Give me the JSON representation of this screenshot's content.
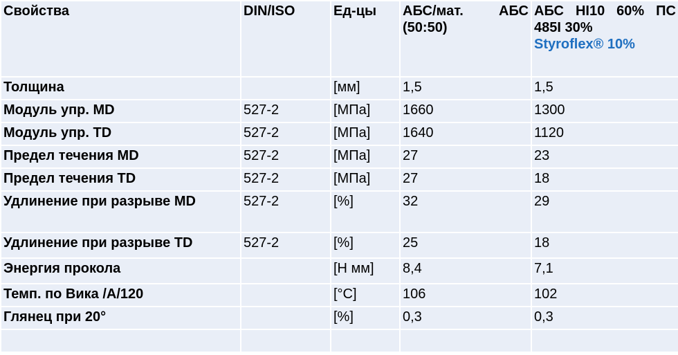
{
  "table": {
    "header": [
      "Свойства",
      "DIN/ISO",
      "Ед-цы",
      "АБС/мат. АБС (50:50)",
      {
        "main": "АБС HI10 60% ПС 485I 30%",
        "accent": "Styroflex® 10%"
      }
    ],
    "rows": [
      [
        "Толщина",
        null,
        "[мм]",
        "1,5",
        "1,5"
      ],
      [
        "Модуль упр. MD",
        "527-2",
        "[МПа]",
        "1660",
        "1300"
      ],
      [
        "Модуль упр. TD",
        "527-2",
        "[МПа]",
        "1640",
        "1120"
      ],
      [
        "Предел течения MD",
        "527-2",
        "[МПа]",
        "27",
        "23"
      ],
      [
        "Предел течения TD",
        "527-2",
        "[МПа]",
        "27",
        "18"
      ],
      [
        "Удлинение при разрыве MD",
        "527-2",
        "[%]",
        "32",
        "29"
      ],
      [
        "Удлинение при разрыве TD",
        "527-2",
        "[%]",
        "25",
        "18"
      ],
      [
        "Энергия прокола",
        null,
        "[Н мм]",
        "8,4",
        "7,1"
      ],
      [
        "Темп. по Вика /A/120",
        null,
        "[°C]",
        "106",
        "102"
      ],
      [
        "Глянец при 20°",
        null,
        "[%]",
        "0,3",
        "0,3"
      ]
    ]
  }
}
